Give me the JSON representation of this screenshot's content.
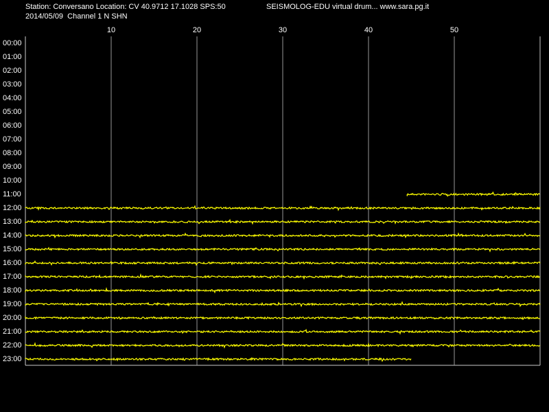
{
  "header": {
    "station": "Station: Conversano Location: CV 40.9712 17.1028 SPS:50",
    "source": "SEISMOLOG-EDU virtual drum... www.sara.pg.it",
    "date_channel": "2014/05/09  Channel 1 N SHN"
  },
  "chart_data": {
    "type": "drum",
    "xlim": [
      0,
      60
    ],
    "xticks": [
      10,
      20,
      30,
      40,
      50
    ],
    "grid": true,
    "color": "#ffff00",
    "categories": [
      "00:00",
      "01:00",
      "02:00",
      "03:00",
      "04:00",
      "05:00",
      "06:00",
      "07:00",
      "08:00",
      "09:00",
      "10:00",
      "11:00",
      "12:00",
      "13:00",
      "14:00",
      "15:00",
      "16:00",
      "17:00",
      "18:00",
      "19:00",
      "20:00",
      "21:00",
      "22:00",
      "23:00"
    ],
    "starts": [
      null,
      null,
      null,
      null,
      null,
      null,
      null,
      null,
      null,
      null,
      null,
      44.5,
      0,
      0,
      0,
      0,
      0,
      0,
      0,
      0,
      0,
      0,
      0,
      0
    ],
    "ends": [
      null,
      null,
      null,
      null,
      null,
      null,
      null,
      null,
      null,
      null,
      null,
      60,
      60,
      60,
      60,
      60,
      60,
      60,
      60,
      60,
      60,
      60,
      60,
      45
    ]
  }
}
